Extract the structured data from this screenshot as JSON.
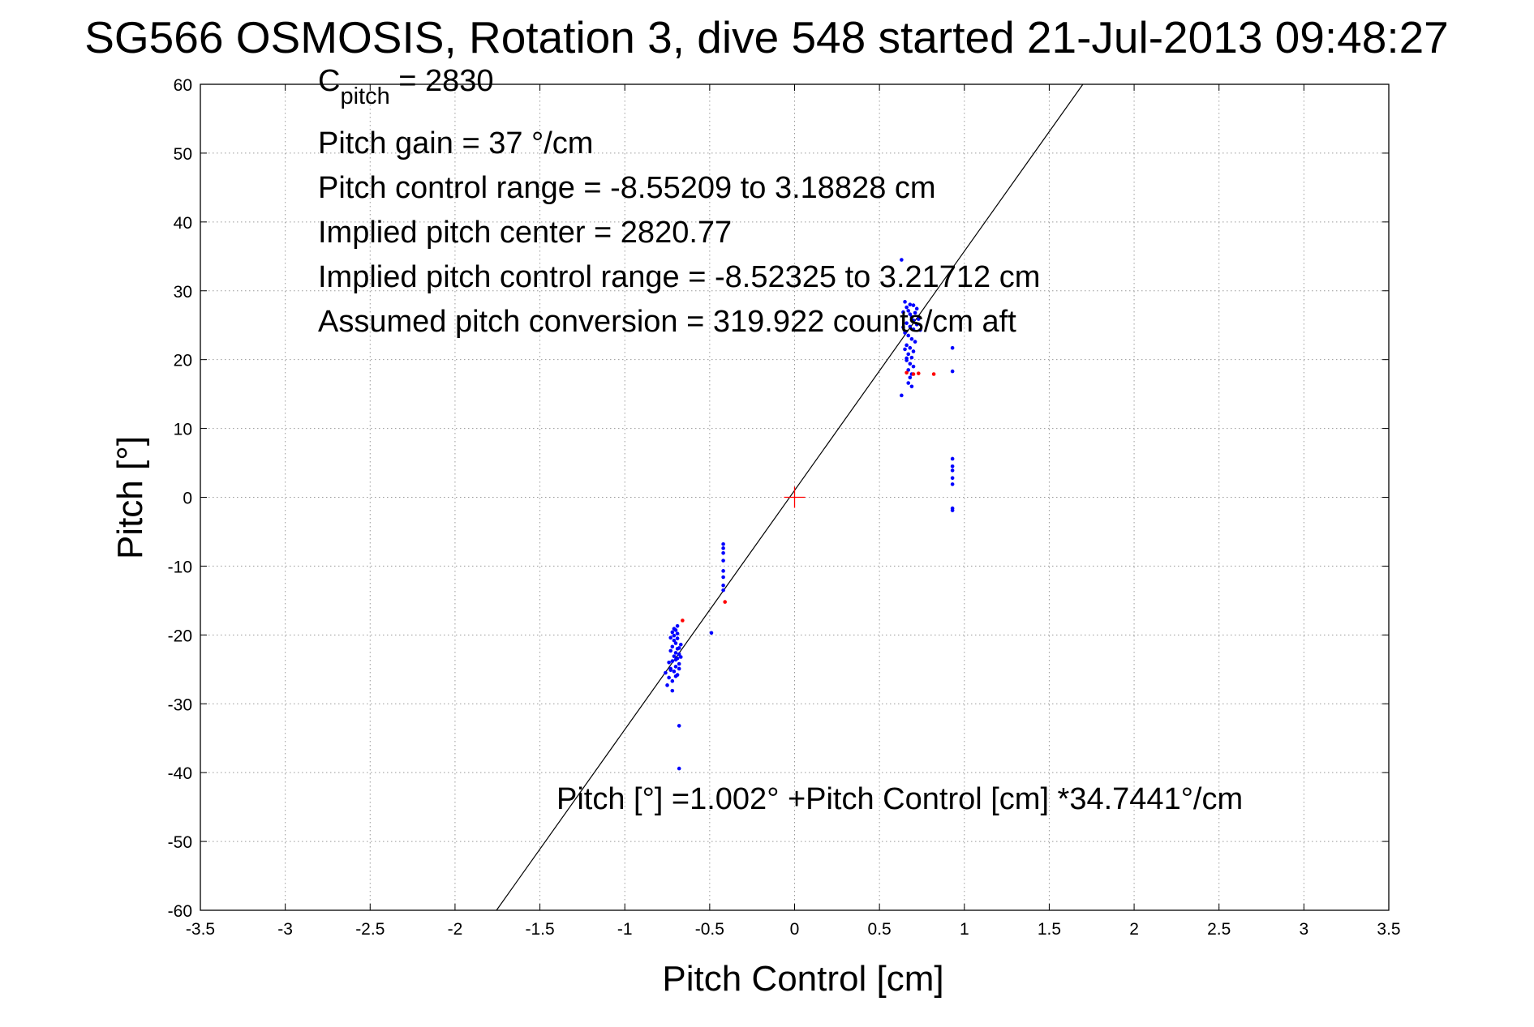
{
  "chart_data": {
    "type": "scatter",
    "title": "SG566 OSMOSIS, Rotation 3, dive 548 started 21-Jul-2013 09:48:27",
    "xlabel": "Pitch Control [cm]",
    "ylabel": "Pitch [°]",
    "xlim": [
      -3.5,
      3.5
    ],
    "ylim": [
      -60,
      60
    ],
    "grid": true,
    "x_ticks": [
      "-3.5",
      "-3",
      "-2.5",
      "-2",
      "-1.5",
      "-1",
      "-0.5",
      "0",
      "0.5",
      "1",
      "1.5",
      "2",
      "2.5",
      "3",
      "3.5"
    ],
    "y_ticks": [
      "60",
      "50",
      "40",
      "30",
      "20",
      "10",
      "0",
      "-10",
      "-20",
      "-30",
      "-40",
      "-50",
      "-60"
    ],
    "annotations": {
      "cpitch_base": "C",
      "cpitch_sub": "pitch",
      "cpitch_value": " = 2830",
      "pitch_gain": "Pitch gain = 37 °/cm",
      "control_range": "Pitch control range = -8.55209 to 3.18828 cm",
      "implied_center": "Implied pitch center = 2820.77",
      "implied_range": "Implied pitch control range = -8.52325 to 3.21712 cm",
      "conversion": "Assumed pitch conversion = 319.922 counts/cm aft",
      "fit_equation": "Pitch [°] =1.002° +Pitch Control [cm] *34.7441°/cm"
    },
    "fit_line": {
      "intercept": 1.002,
      "slope": 34.7441,
      "color": "#000000"
    },
    "center_marker": {
      "x": 0,
      "y": 0,
      "color": "#ff0000"
    },
    "series": [
      {
        "color": "#0000ff",
        "points": [
          [
            -0.72,
            -19.6
          ],
          [
            -0.71,
            -20.1
          ],
          [
            -0.7,
            -19.3
          ],
          [
            -0.69,
            -18.7
          ],
          [
            -0.71,
            -20.8
          ],
          [
            -0.7,
            -21.2
          ],
          [
            -0.72,
            -21.7
          ],
          [
            -0.69,
            -20.5
          ],
          [
            -0.68,
            -21.9
          ],
          [
            -0.73,
            -22.3
          ],
          [
            -0.7,
            -22.6
          ],
          [
            -0.71,
            -23.1
          ],
          [
            -0.69,
            -23.4
          ],
          [
            -0.72,
            -23.8
          ],
          [
            -0.68,
            -24.2
          ],
          [
            -0.7,
            -24.6
          ],
          [
            -0.73,
            -24.9
          ],
          [
            -0.71,
            -25.3
          ],
          [
            -0.69,
            -25.8
          ],
          [
            -0.74,
            -26.2
          ],
          [
            -0.72,
            -26.7
          ],
          [
            -0.75,
            -27.3
          ],
          [
            -0.73,
            -25.1
          ],
          [
            -0.7,
            -23.6
          ],
          [
            -0.68,
            -22.8
          ],
          [
            -0.67,
            -21.4
          ],
          [
            -0.69,
            -19.8
          ],
          [
            -0.71,
            -19.1
          ],
          [
            -0.68,
            -24.9
          ],
          [
            -0.67,
            -23.2
          ],
          [
            -0.7,
            -26.0
          ],
          [
            -0.74,
            -24.0
          ],
          [
            -0.76,
            -25.5
          ],
          [
            -0.72,
            -28.1
          ],
          [
            -0.69,
            -22.0
          ],
          [
            -0.73,
            -20.4
          ],
          [
            -0.68,
            -33.2
          ],
          [
            -0.68,
            -39.4
          ],
          [
            -0.49,
            -19.7
          ],
          [
            -0.42,
            -6.8
          ],
          [
            -0.42,
            -7.4
          ],
          [
            -0.42,
            -8.1
          ],
          [
            -0.42,
            -9.2
          ],
          [
            -0.42,
            -10.7
          ],
          [
            -0.42,
            -11.6
          ],
          [
            -0.42,
            -12.8
          ],
          [
            -0.42,
            -13.5
          ],
          [
            0.63,
            34.5
          ],
          [
            0.65,
            28.4
          ],
          [
            0.66,
            27.6
          ],
          [
            0.67,
            27.1
          ],
          [
            0.68,
            26.6
          ],
          [
            0.69,
            26.2
          ],
          [
            0.7,
            25.7
          ],
          [
            0.66,
            25.3
          ],
          [
            0.68,
            24.8
          ],
          [
            0.7,
            24.4
          ],
          [
            0.65,
            23.9
          ],
          [
            0.67,
            23.5
          ],
          [
            0.69,
            23.0
          ],
          [
            0.71,
            22.6
          ],
          [
            0.66,
            22.1
          ],
          [
            0.68,
            21.7
          ],
          [
            0.7,
            21.2
          ],
          [
            0.67,
            20.8
          ],
          [
            0.69,
            20.3
          ],
          [
            0.66,
            19.9
          ],
          [
            0.68,
            19.4
          ],
          [
            0.7,
            19.0
          ],
          [
            0.67,
            18.5
          ],
          [
            0.69,
            17.9
          ],
          [
            0.68,
            17.4
          ],
          [
            0.67,
            16.6
          ],
          [
            0.69,
            16.1
          ],
          [
            0.72,
            27.4
          ],
          [
            0.71,
            26.8
          ],
          [
            0.73,
            25.9
          ],
          [
            0.72,
            25.1
          ],
          [
            0.74,
            24.3
          ],
          [
            0.64,
            26.9
          ],
          [
            0.64,
            24.7
          ],
          [
            0.65,
            21.5
          ],
          [
            0.66,
            20.2
          ],
          [
            0.63,
            14.8
          ],
          [
            0.68,
            28.0
          ],
          [
            0.7,
            27.9
          ],
          [
            0.93,
            21.7
          ],
          [
            0.93,
            18.3
          ],
          [
            0.93,
            5.6
          ],
          [
            0.93,
            4.5
          ],
          [
            0.93,
            3.9
          ],
          [
            0.93,
            2.8
          ],
          [
            0.93,
            1.9
          ],
          [
            0.93,
            -1.6
          ],
          [
            0.93,
            -1.9
          ]
        ]
      },
      {
        "color": "#ff0000",
        "points": [
          [
            -0.66,
            -17.9
          ],
          [
            -0.41,
            -15.2
          ],
          [
            0.66,
            18.1
          ],
          [
            0.7,
            17.9
          ],
          [
            0.73,
            18.0
          ],
          [
            0.82,
            17.9
          ]
        ]
      }
    ]
  }
}
